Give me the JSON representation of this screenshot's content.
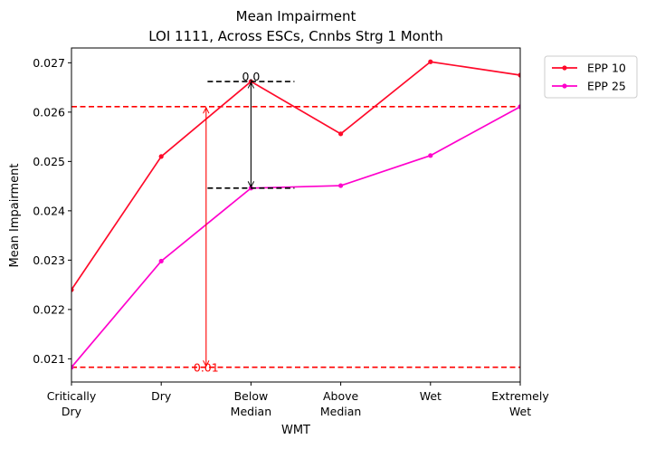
{
  "chart_data": {
    "type": "line",
    "title": "Mean Impairment",
    "subtitle": "LOI 1111, Across ESCs, Cnnbs Strg 1 Month",
    "xlabel": "WMT",
    "ylabel": "Mean Impairment",
    "categories": [
      [
        "Critically",
        "Dry"
      ],
      [
        "Dry"
      ],
      [
        "Below",
        "Median"
      ],
      [
        "Above",
        "Median"
      ],
      [
        "Wet"
      ],
      [
        "Extremely",
        "Wet"
      ]
    ],
    "ylim": [
      0.02053,
      0.0273
    ],
    "yticks": [
      0.021,
      0.022,
      0.023,
      0.024,
      0.025,
      0.026,
      0.027
    ],
    "ytick_labels": [
      "0.021",
      "0.022",
      "0.023",
      "0.024",
      "0.025",
      "0.026",
      "0.027"
    ],
    "series": [
      {
        "name": "EPP 10",
        "color": "#ff0a2a",
        "values": [
          0.0224,
          0.0251,
          0.02662,
          0.02556,
          0.02702,
          0.02675
        ]
      },
      {
        "name": "EPP 25",
        "color": "#ff00cc",
        "values": [
          0.02083,
          0.02298,
          0.02446,
          0.02451,
          0.02512,
          0.02611
        ]
      }
    ],
    "hlines": [
      {
        "y": 0.02611,
        "color": "#ff0000",
        "style": "dashed"
      },
      {
        "y": 0.02083,
        "color": "#ff0000",
        "style": "dashed"
      }
    ],
    "annotations": [
      {
        "text": "0.0",
        "x_index": 2,
        "y_top": 0.02662,
        "y_bottom": 0.02446,
        "color": "#000000"
      },
      {
        "text": "0.01",
        "x_index": 1.5,
        "y_top": 0.02611,
        "y_bottom": 0.02083,
        "color": "#ff0000"
      }
    ],
    "legend_position": "outside-top-right",
    "grid": false
  }
}
